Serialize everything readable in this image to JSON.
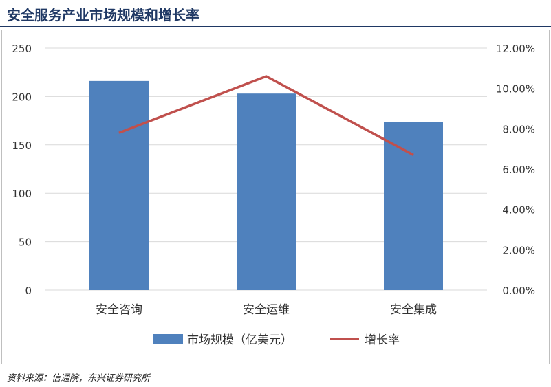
{
  "title": "安全服务产业市场规模和增长率",
  "source": "资料来源：信通院，东兴证券研究所",
  "chart_data": {
    "type": "bar",
    "categories": [
      "安全咨询",
      "安全运维",
      "安全集成"
    ],
    "series": [
      {
        "name": "市场规模（亿美元）",
        "type": "bar",
        "axis": "left",
        "values": [
          216,
          203,
          174
        ]
      },
      {
        "name": "增长率",
        "type": "line",
        "axis": "right",
        "values": [
          0.078,
          0.106,
          0.067
        ]
      }
    ],
    "ylim": [
      0,
      250
    ],
    "y_ticks": [
      "0",
      "50",
      "100",
      "150",
      "200",
      "250"
    ],
    "y2lim": [
      0,
      0.12
    ],
    "y2_ticks": [
      "0.00%",
      "2.00%",
      "4.00%",
      "6.00%",
      "8.00%",
      "10.00%",
      "12.00%"
    ],
    "grid": true,
    "legend_position": "bottom",
    "colors": {
      "bar": "#4f81bd",
      "line": "#c0504d",
      "grid": "#d9d9d9"
    }
  }
}
